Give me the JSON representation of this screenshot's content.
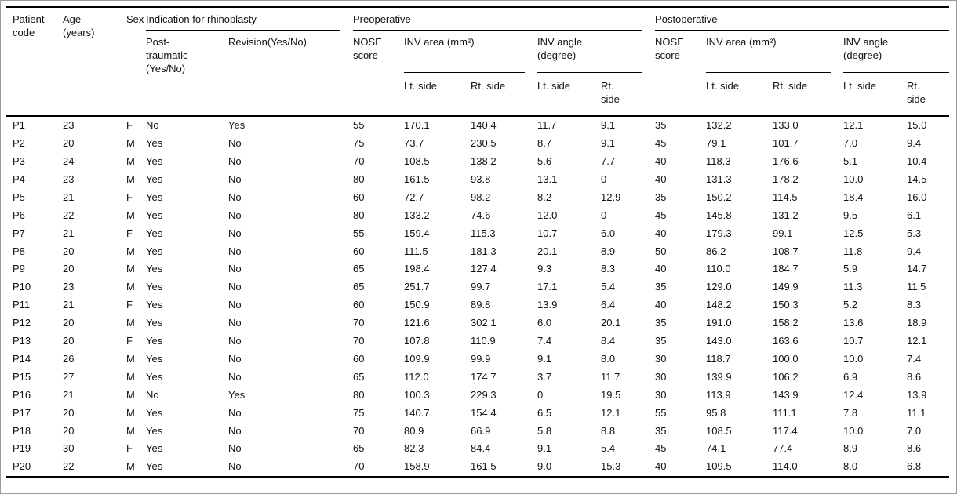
{
  "colors": {
    "rule": "#000000",
    "frame_border": "#9a9a9a",
    "text": "#111111",
    "background": "#ffffff"
  },
  "table": {
    "header": {
      "patient_code": "Patient\ncode",
      "age": "Age\n(years)",
      "sex": "Sex",
      "indication": "Indication for rhinoplasty",
      "preoperative": "Preoperative",
      "postoperative": "Postoperative",
      "post_traumatic": "Post-\ntraumatic\n(Yes/No)",
      "revision": "Revision(Yes/No)",
      "nose_score": "NOSE\nscore",
      "inv_area": "INV area (mm²)",
      "inv_angle": "INV angle\n(degree)",
      "lt_side": "Lt. side",
      "rt_side": "Rt. side",
      "rt_side_wrapped": "Rt.\nside"
    },
    "rows": [
      [
        "P1",
        "23",
        "F",
        "No",
        "Yes",
        "55",
        "170.1",
        "140.4",
        "11.7",
        "9.1",
        "35",
        "132.2",
        "133.0",
        "12.1",
        "15.0"
      ],
      [
        "P2",
        "20",
        "M",
        "Yes",
        "No",
        "75",
        "73.7",
        "230.5",
        "8.7",
        "9.1",
        "45",
        "79.1",
        "101.7",
        "7.0",
        "9.4"
      ],
      [
        "P3",
        "24",
        "M",
        "Yes",
        "No",
        "70",
        "108.5",
        "138.2",
        "5.6",
        "7.7",
        "40",
        "118.3",
        "176.6",
        "5.1",
        "10.4"
      ],
      [
        "P4",
        "23",
        "M",
        "Yes",
        "No",
        "80",
        "161.5",
        "93.8",
        "13.1",
        "0",
        "40",
        "131.3",
        "178.2",
        "10.0",
        "14.5"
      ],
      [
        "P5",
        "21",
        "F",
        "Yes",
        "No",
        "60",
        "72.7",
        "98.2",
        "8.2",
        "12.9",
        "35",
        "150.2",
        "114.5",
        "18.4",
        "16.0"
      ],
      [
        "P6",
        "22",
        "M",
        "Yes",
        "No",
        "80",
        "133.2",
        "74.6",
        "12.0",
        "0",
        "45",
        "145.8",
        "131.2",
        "9.5",
        "6.1"
      ],
      [
        "P7",
        "21",
        "F",
        "Yes",
        "No",
        "55",
        "159.4",
        "115.3",
        "10.7",
        "6.0",
        "40",
        "179.3",
        "99.1",
        "12.5",
        "5.3"
      ],
      [
        "P8",
        "20",
        "M",
        "Yes",
        "No",
        "60",
        "111.5",
        "181.3",
        "20.1",
        "8.9",
        "50",
        "86.2",
        "108.7",
        "11.8",
        "9.4"
      ],
      [
        "P9",
        "20",
        "M",
        "Yes",
        "No",
        "65",
        "198.4",
        "127.4",
        "9.3",
        "8.3",
        "40",
        "110.0",
        "184.7",
        "5.9",
        "14.7"
      ],
      [
        "P10",
        "23",
        "M",
        "Yes",
        "No",
        "65",
        "251.7",
        "99.7",
        "17.1",
        "5.4",
        "35",
        "129.0",
        "149.9",
        "11.3",
        "11.5"
      ],
      [
        "P11",
        "21",
        "F",
        "Yes",
        "No",
        "60",
        "150.9",
        "89.8",
        "13.9",
        "6.4",
        "40",
        "148.2",
        "150.3",
        "5.2",
        "8.3"
      ],
      [
        "P12",
        "20",
        "M",
        "Yes",
        "No",
        "70",
        "121.6",
        "302.1",
        "6.0",
        "20.1",
        "35",
        "191.0",
        "158.2",
        "13.6",
        "18.9"
      ],
      [
        "P13",
        "20",
        "F",
        "Yes",
        "No",
        "70",
        "107.8",
        "110.9",
        "7.4",
        "8.4",
        "35",
        "143.0",
        "163.6",
        "10.7",
        "12.1"
      ],
      [
        "P14",
        "26",
        "M",
        "Yes",
        "No",
        "60",
        "109.9",
        "99.9",
        "9.1",
        "8.0",
        "30",
        "118.7",
        "100.0",
        "10.0",
        "7.4"
      ],
      [
        "P15",
        "27",
        "M",
        "Yes",
        "No",
        "65",
        "112.0",
        "174.7",
        "3.7",
        "11.7",
        "30",
        "139.9",
        "106.2",
        "6.9",
        "8.6"
      ],
      [
        "P16",
        "21",
        "M",
        "No",
        "Yes",
        "80",
        "100.3",
        "229.3",
        "0",
        "19.5",
        "30",
        "113.9",
        "143.9",
        "12.4",
        "13.9"
      ],
      [
        "P17",
        "20",
        "M",
        "Yes",
        "No",
        "75",
        "140.7",
        "154.4",
        "6.5",
        "12.1",
        "55",
        "95.8",
        "111.1",
        "7.8",
        "11.1"
      ],
      [
        "P18",
        "20",
        "M",
        "Yes",
        "No",
        "70",
        "80.9",
        "66.9",
        "5.8",
        "8.8",
        "35",
        "108.5",
        "117.4",
        "10.0",
        "7.0"
      ],
      [
        "P19",
        "30",
        "F",
        "Yes",
        "No",
        "65",
        "82.3",
        "84.4",
        "9.1",
        "5.4",
        "45",
        "74.1",
        "77.4",
        "8.9",
        "8.6"
      ],
      [
        "P20",
        "22",
        "M",
        "Yes",
        "No",
        "70",
        "158.9",
        "161.5",
        "9.0",
        "15.3",
        "40",
        "109.5",
        "114.0",
        "8.0",
        "6.8"
      ]
    ]
  }
}
